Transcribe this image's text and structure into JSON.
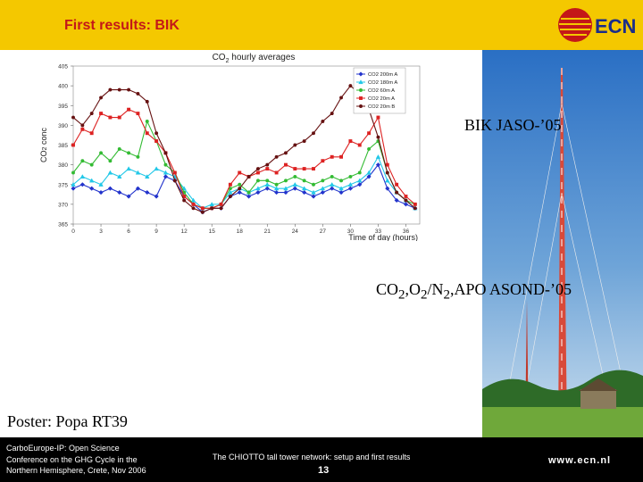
{
  "slide": {
    "title": "First results: BIK",
    "logo_text": "ECN",
    "caption_bik": "BIK JASO-’05",
    "caption_asond": {
      "co": "CO",
      "s1": "2",
      "o": ",O",
      "s2": "2",
      "n": "/N",
      "s3": "2",
      "rest": ",APO ASOND-’05"
    },
    "poster": "Poster: Popa RT39",
    "footer": {
      "conference_lines": [
        "CarboEurope-IP: Open Science",
        "Conference on the GHG Cycle in the",
        "Northern Hemisphere, Crete, Nov 2006"
      ],
      "network_title": "The CHIOTTO tall tower network: setup and first results",
      "page_number": "13",
      "url": "www.ecn.nl"
    }
  },
  "colors": {
    "header": "#f4c800",
    "title": "#c41818",
    "footer": "#000000"
  },
  "chart_data": {
    "type": "line",
    "title": "CO2 hourly averages",
    "xlabel": "Time of day (hours)",
    "ylabel": "CO2 conc",
    "x": [
      0,
      1,
      2,
      3,
      4,
      5,
      6,
      7,
      8,
      9,
      10,
      11,
      12,
      13,
      14,
      15,
      16,
      17,
      18,
      19,
      20,
      21,
      22,
      23,
      24,
      25,
      26,
      27,
      28,
      29,
      30,
      31,
      32,
      33,
      34,
      35,
      36,
      37
    ],
    "xticks": [
      0,
      3,
      6,
      9,
      12,
      15,
      18,
      21,
      24,
      27,
      30,
      33,
      36
    ],
    "yticks": [
      365,
      370,
      375,
      380,
      385,
      390,
      395,
      400,
      405
    ],
    "xlim": [
      0,
      37.5
    ],
    "ylim": [
      365,
      405
    ],
    "grid": false,
    "legend_position": "top-right",
    "series": [
      {
        "name": "CO2 200m A",
        "color": "#2233cc",
        "marker": "diamond",
        "values": [
          374,
          375,
          374,
          373,
          374,
          373,
          372,
          374,
          373,
          372,
          377,
          376,
          372,
          370,
          368,
          369,
          369,
          372,
          373,
          372,
          373,
          374,
          373,
          373,
          374,
          373,
          372,
          373,
          374,
          373,
          374,
          375,
          377,
          380,
          374,
          371,
          370,
          369
        ]
      },
      {
        "name": "CO2 180m A",
        "color": "#22c8e8",
        "marker": "triangle",
        "values": [
          375,
          377,
          376,
          375,
          378,
          377,
          379,
          378,
          377,
          379,
          378,
          377,
          374,
          371,
          369,
          370,
          370,
          373,
          374,
          373,
          374,
          375,
          374,
          374,
          375,
          374,
          373,
          374,
          375,
          374,
          375,
          376,
          378,
          382,
          376,
          373,
          371,
          369
        ]
      },
      {
        "name": "CO2 60m A",
        "color": "#33bb33",
        "marker": "circle",
        "values": [
          378,
          381,
          380,
          383,
          381,
          384,
          383,
          382,
          391,
          386,
          380,
          378,
          373,
          370,
          369,
          369,
          370,
          374,
          375,
          373,
          376,
          376,
          375,
          376,
          377,
          376,
          375,
          376,
          377,
          376,
          377,
          378,
          384,
          386,
          378,
          373,
          371,
          370
        ]
      },
      {
        "name": "CO2 20m A",
        "color": "#dd2222",
        "marker": "square",
        "values": [
          385,
          389,
          388,
          393,
          392,
          392,
          394,
          393,
          388,
          386,
          383,
          378,
          372,
          370,
          369,
          369,
          370,
          375,
          378,
          377,
          378,
          379,
          378,
          380,
          379,
          379,
          379,
          381,
          382,
          382,
          386,
          385,
          388,
          392,
          380,
          375,
          372,
          370
        ]
      },
      {
        "name": "CO2 20m B",
        "color": "#661111",
        "marker": "circle",
        "values": [
          392,
          390,
          393,
          397,
          399,
          399,
          399,
          398,
          396,
          388,
          383,
          376,
          371,
          369,
          368,
          369,
          369,
          372,
          374,
          377,
          379,
          380,
          382,
          383,
          385,
          386,
          388,
          391,
          393,
          397,
          400,
          398,
          394,
          387,
          378,
          373,
          371,
          369
        ]
      }
    ]
  }
}
